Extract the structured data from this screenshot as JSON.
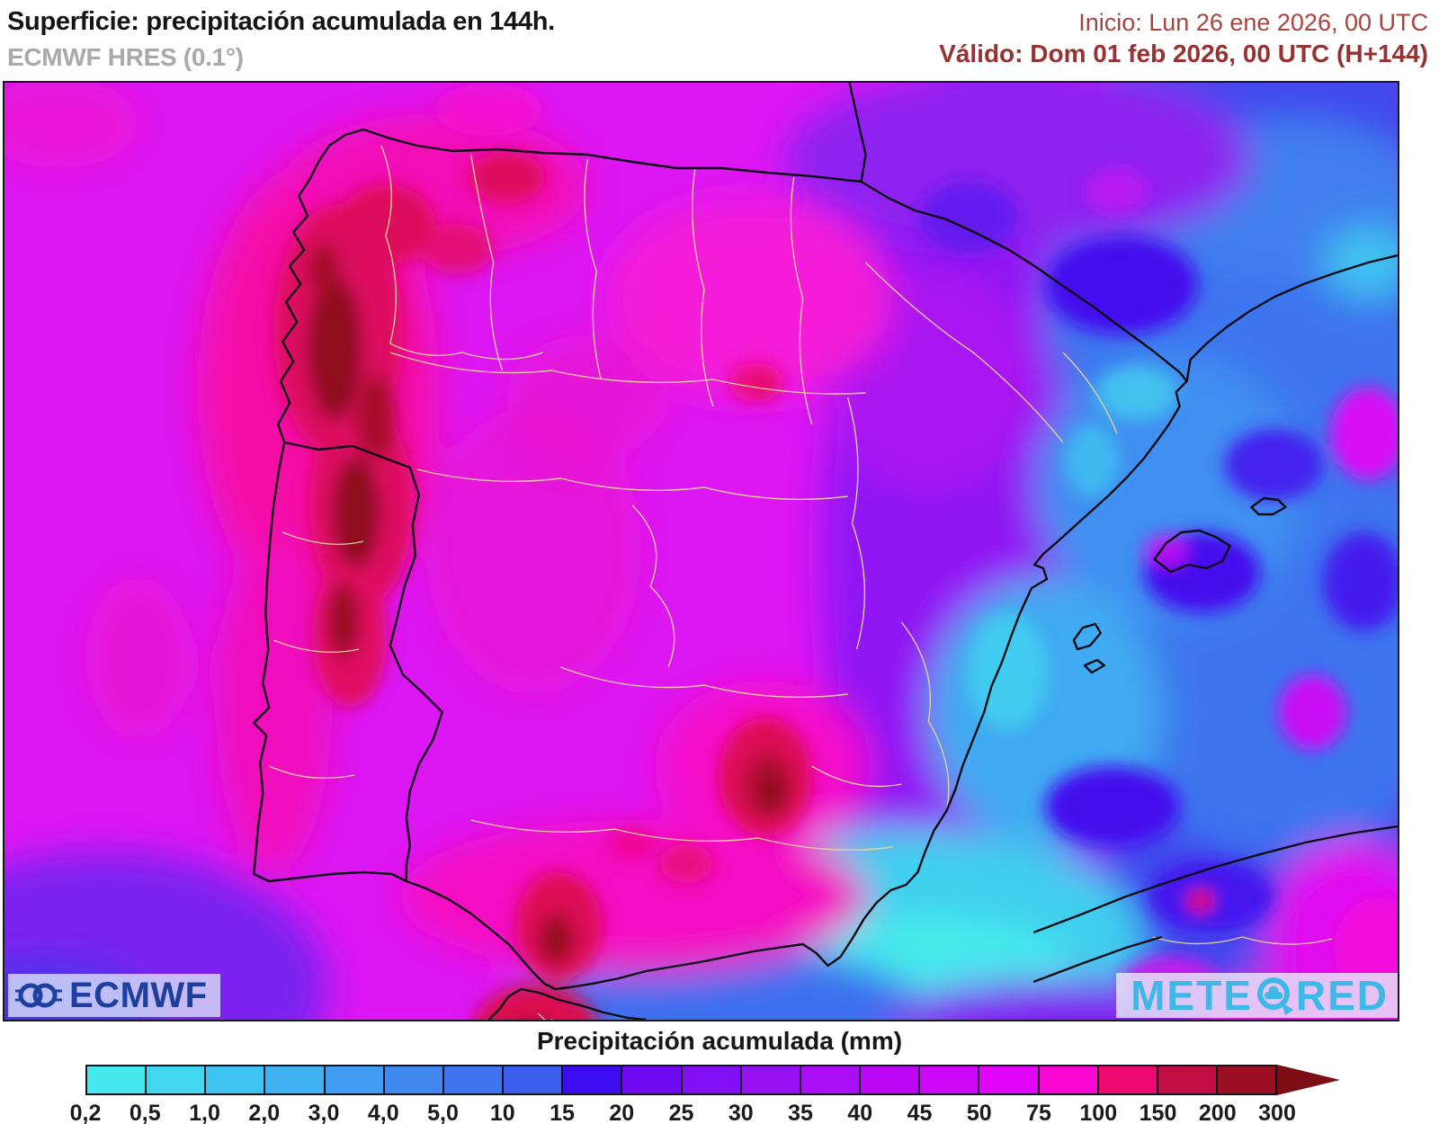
{
  "header": {
    "title": "Superficie: precipitación acumulada en 144h.",
    "subtitle": "ECMWF HRES (0.1°)",
    "init_label": "Inicio: Lun 26 ene 2026, 00 UTC",
    "valid_label": "Válido: Dom 01 feb 2026, 00 UTC (H+144)"
  },
  "map": {
    "ecmwf_logo_text": "ECMWF",
    "meteored_part1": "METE",
    "meteored_part2": "RED"
  },
  "legend": {
    "title": "Precipitación acumulada (mm)",
    "ticks": [
      "0,2",
      "0,5",
      "1,0",
      "2,0",
      "3,0",
      "4,0",
      "5,0",
      "10",
      "15",
      "20",
      "25",
      "30",
      "35",
      "40",
      "45",
      "50",
      "75",
      "100",
      "150",
      "200",
      "300"
    ],
    "colors": [
      "#45E9ED",
      "#40D7EF",
      "#3FC4F1",
      "#3FB0F2",
      "#409CF2",
      "#4088F0",
      "#3F73EF",
      "#3C5EEE",
      "#3A0CEF",
      "#6E09F2",
      "#8310F3",
      "#9612F5",
      "#A90EF6",
      "#BC07F7",
      "#CD08F8",
      "#E304FA",
      "#F807D2",
      "#EE0970",
      "#C00D44",
      "#9A0D22"
    ],
    "arrow_color": "#7C0D15",
    "units": "mm"
  },
  "colors": {
    "title_text": "#141414",
    "subtitle_text": "#A9A9A9",
    "init_text": "#A64440",
    "valid_text": "#953232",
    "ecmwf_blue": "#1D3FA0",
    "meteored_cyan": "#3EB8E6",
    "coastline": "#0d0d16",
    "province_border": "#E6D39E",
    "map_base_magenta": "#DC17F3"
  }
}
